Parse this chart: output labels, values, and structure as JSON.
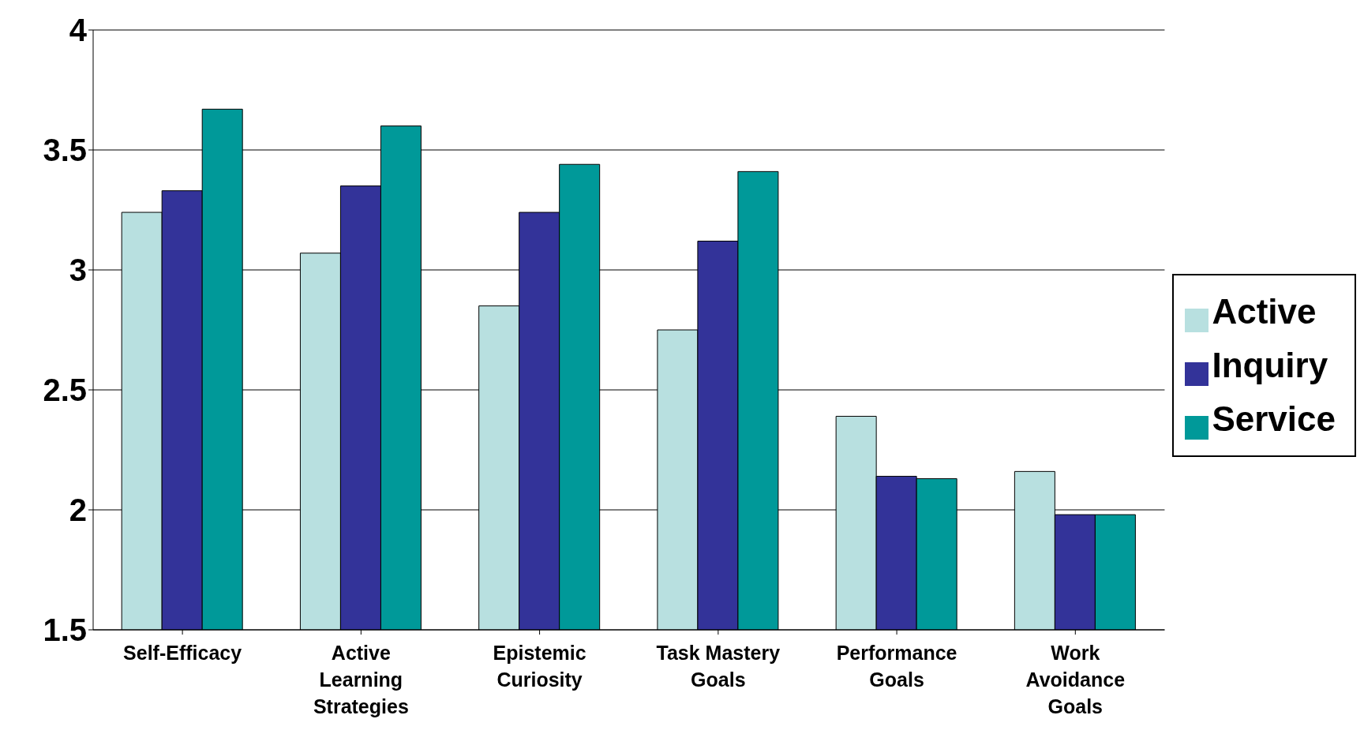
{
  "chart_data": {
    "type": "bar",
    "categories": [
      "Self-Efficacy",
      "Active Learning Strategies",
      "Epistemic Curiosity",
      "Task Mastery Goals",
      "Performance Goals",
      "Work Avoidance Goals"
    ],
    "series": [
      {
        "name": "Active",
        "color": "#b8e0e0",
        "values": [
          3.24,
          3.07,
          2.85,
          2.75,
          2.39,
          2.16
        ]
      },
      {
        "name": "Inquiry",
        "color": "#333399",
        "values": [
          3.33,
          3.35,
          3.24,
          3.12,
          2.14,
          1.98
        ]
      },
      {
        "name": "Service",
        "color": "#009999",
        "values": [
          3.67,
          3.6,
          3.44,
          3.41,
          2.13,
          1.98
        ]
      }
    ],
    "ylim": [
      1.5,
      4
    ],
    "yticks": [
      1.5,
      2,
      2.5,
      3,
      3.5,
      4
    ],
    "grid": "y",
    "legend": "right"
  }
}
